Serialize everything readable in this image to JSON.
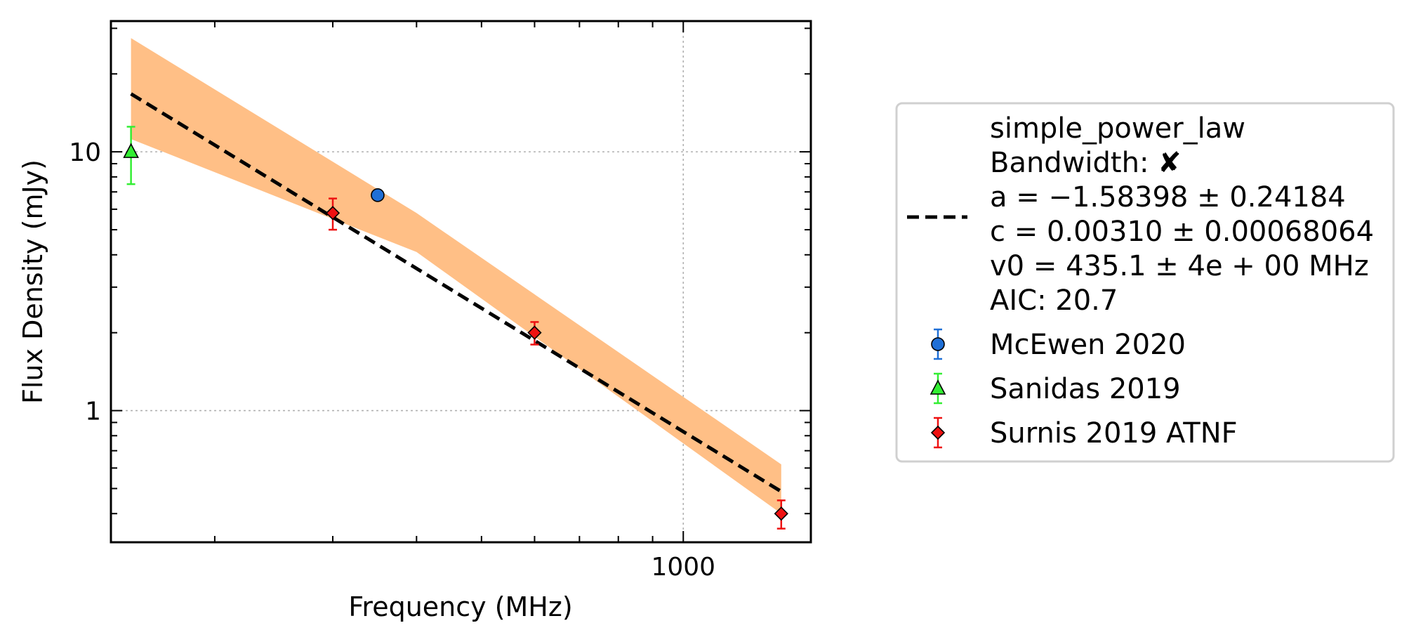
{
  "chart_data": {
    "type": "scatter",
    "title": "",
    "xlabel": "Frequency (MHz)",
    "ylabel": "Flux Density (mJy)",
    "xscale": "log",
    "yscale": "log",
    "xlim": [
      140,
      1550
    ],
    "ylim": [
      0.31,
      32
    ],
    "grid": true,
    "legend_position": "outside-right",
    "x_tick_labels": [
      {
        "value": 1000,
        "label": "1000"
      }
    ],
    "y_tick_labels": [
      {
        "value": 1,
        "label": "1"
      },
      {
        "value": 10,
        "label": "10"
      }
    ],
    "fit": {
      "model": "simple_power_law",
      "a": -1.58398,
      "c": 0.0031,
      "v0": 435.1,
      "x_range": [
        150,
        1400
      ],
      "line_color": "#000000",
      "band_color": "#ffbf86",
      "band": [
        {
          "x": 150,
          "lower": 11.2,
          "upper": 27.5
        },
        {
          "x": 400,
          "lower": 4.1,
          "upper": 5.8
        },
        {
          "x": 1400,
          "lower": 0.4,
          "upper": 0.62
        }
      ]
    },
    "series": [
      {
        "name": "McEwen 2020",
        "marker": "circle",
        "color": "#1f6fd6",
        "points": [
          {
            "x": 350,
            "y": 6.8,
            "yerr_low": 0.25,
            "yerr_high": 0.25
          }
        ]
      },
      {
        "name": "Sanidas 2019",
        "marker": "triangle",
        "color": "#33ee33",
        "points": [
          {
            "x": 150,
            "y": 10.0,
            "yerr_low": 2.5,
            "yerr_high": 2.5
          }
        ]
      },
      {
        "name": "Surnis 2019 ATNF",
        "marker": "diamond",
        "color": "#ee1111",
        "points": [
          {
            "x": 300,
            "y": 5.8,
            "yerr_low": 0.8,
            "yerr_high": 0.8
          },
          {
            "x": 600,
            "y": 2.0,
            "yerr_low": 0.2,
            "yerr_high": 0.2
          },
          {
            "x": 1400,
            "y": 0.4,
            "yerr_low": 0.05,
            "yerr_high": 0.05
          }
        ]
      }
    ],
    "legend": {
      "fit_lines": [
        "simple_power_law",
        "Bandwidth: ✘",
        "a = −1.58398 ± 0.24184",
        "c = 0.00310 ± 0.00068064",
        "v0 = 435.1 ± 4e + 00 MHz",
        "AIC: 20.7"
      ],
      "entries": [
        "McEwen 2020",
        "Sanidas 2019",
        "Surnis 2019 ATNF"
      ]
    }
  }
}
